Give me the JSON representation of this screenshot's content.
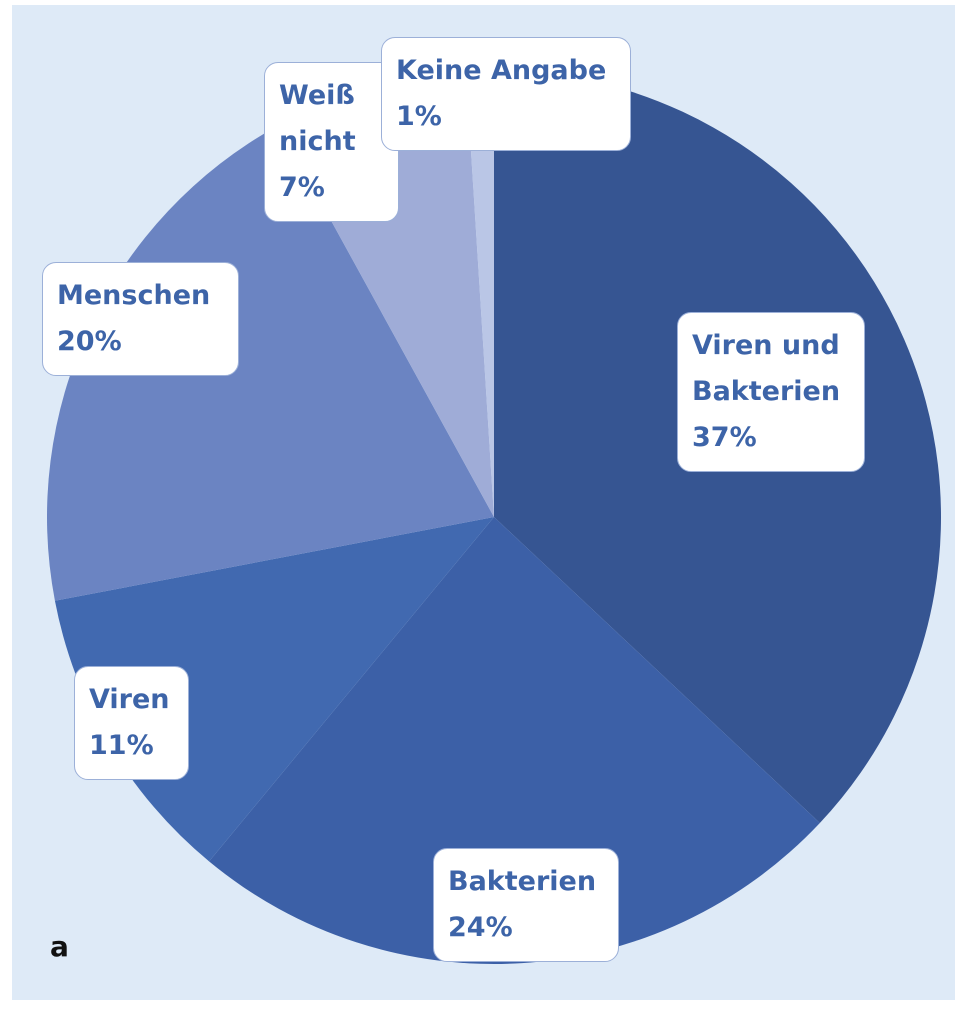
{
  "chart_data": {
    "type": "pie",
    "categories": [
      "Viren und Bakterien",
      "Bakterien",
      "Viren",
      "Menschen",
      "Weiß nicht",
      "Keine Angabe"
    ],
    "values": [
      37,
      24,
      11,
      20,
      7,
      1
    ],
    "value_labels": [
      "37%",
      "24%",
      "11%",
      "20%",
      "7%",
      "1%"
    ],
    "colors": [
      "#365592",
      "#3c60a7",
      "#4169b0",
      "#6b84c2",
      "#9facd7",
      "#bac6e6"
    ],
    "panel_label": "a"
  }
}
